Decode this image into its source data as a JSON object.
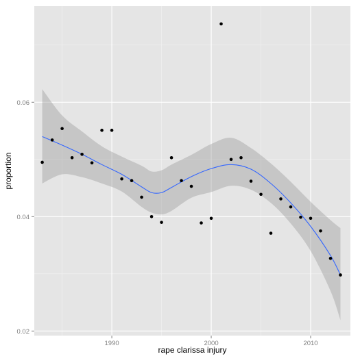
{
  "chart_data": {
    "type": "scatter",
    "title": "",
    "xlabel": "rape clarissa injury",
    "ylabel": "proportion",
    "xlim": [
      1982.2,
      2014.0
    ],
    "ylim": [
      0.0192,
      0.0768
    ],
    "x_ticks": [
      1990,
      2000,
      2010
    ],
    "x_tick_labels": [
      "1990",
      "2000",
      "2010"
    ],
    "y_ticks": [
      0.02,
      0.04,
      0.06
    ],
    "y_tick_labels": [
      "0.02",
      "0.04",
      "0.06"
    ],
    "grid": true,
    "legend": "none",
    "colors": {
      "panel_background": "#e5e5e5",
      "grid_major": "#ffffff",
      "grid_minor": "#f2f2f2",
      "points": "#000000",
      "smooth_line": "#3366ff",
      "confidence_band": "#999999"
    },
    "points": [
      {
        "x": 1983,
        "y": 0.0495
      },
      {
        "x": 1984,
        "y": 0.0534
      },
      {
        "x": 1985,
        "y": 0.0554
      },
      {
        "x": 1986,
        "y": 0.0503
      },
      {
        "x": 1987,
        "y": 0.0509
      },
      {
        "x": 1988,
        "y": 0.0494
      },
      {
        "x": 1989,
        "y": 0.0551
      },
      {
        "x": 1990,
        "y": 0.0551
      },
      {
        "x": 1991,
        "y": 0.0466
      },
      {
        "x": 1992,
        "y": 0.0463
      },
      {
        "x": 1993,
        "y": 0.0434
      },
      {
        "x": 1994,
        "y": 0.04
      },
      {
        "x": 1995,
        "y": 0.039
      },
      {
        "x": 1996,
        "y": 0.0503
      },
      {
        "x": 1997,
        "y": 0.0463
      },
      {
        "x": 1998,
        "y": 0.0453
      },
      {
        "x": 1999,
        "y": 0.0389
      },
      {
        "x": 2000,
        "y": 0.0397
      },
      {
        "x": 2001,
        "y": 0.0737
      },
      {
        "x": 2002,
        "y": 0.05
      },
      {
        "x": 2003,
        "y": 0.0503
      },
      {
        "x": 2004,
        "y": 0.0462
      },
      {
        "x": 2005,
        "y": 0.0439
      },
      {
        "x": 2006,
        "y": 0.0371
      },
      {
        "x": 2007,
        "y": 0.0431
      },
      {
        "x": 2008,
        "y": 0.0417
      },
      {
        "x": 2009,
        "y": 0.0399
      },
      {
        "x": 2010,
        "y": 0.0397
      },
      {
        "x": 2011,
        "y": 0.0375
      },
      {
        "x": 2012,
        "y": 0.0327
      },
      {
        "x": 2013,
        "y": 0.0298
      }
    ],
    "smooth": {
      "x": [
        1983,
        1985,
        1987,
        1989,
        1991,
        1993,
        1994,
        1995,
        1996,
        1998,
        2000,
        2002,
        2004,
        2006,
        2008,
        2010,
        2012,
        2013
      ],
      "y": [
        0.054,
        0.0525,
        0.0509,
        0.0491,
        0.0474,
        0.0452,
        0.0442,
        0.0442,
        0.0451,
        0.047,
        0.0484,
        0.0491,
        0.0483,
        0.0458,
        0.0424,
        0.0383,
        0.0332,
        0.0298
      ],
      "lower": [
        0.0458,
        0.0474,
        0.0469,
        0.0458,
        0.0444,
        0.0417,
        0.0407,
        0.0404,
        0.041,
        0.0433,
        0.0443,
        0.0454,
        0.0447,
        0.0424,
        0.0388,
        0.034,
        0.027,
        0.0219
      ],
      "upper": [
        0.0623,
        0.0577,
        0.0549,
        0.0523,
        0.0505,
        0.0489,
        0.0479,
        0.0481,
        0.0491,
        0.0508,
        0.0527,
        0.0538,
        0.052,
        0.0493,
        0.0461,
        0.0426,
        0.0394,
        0.038
      ]
    }
  }
}
